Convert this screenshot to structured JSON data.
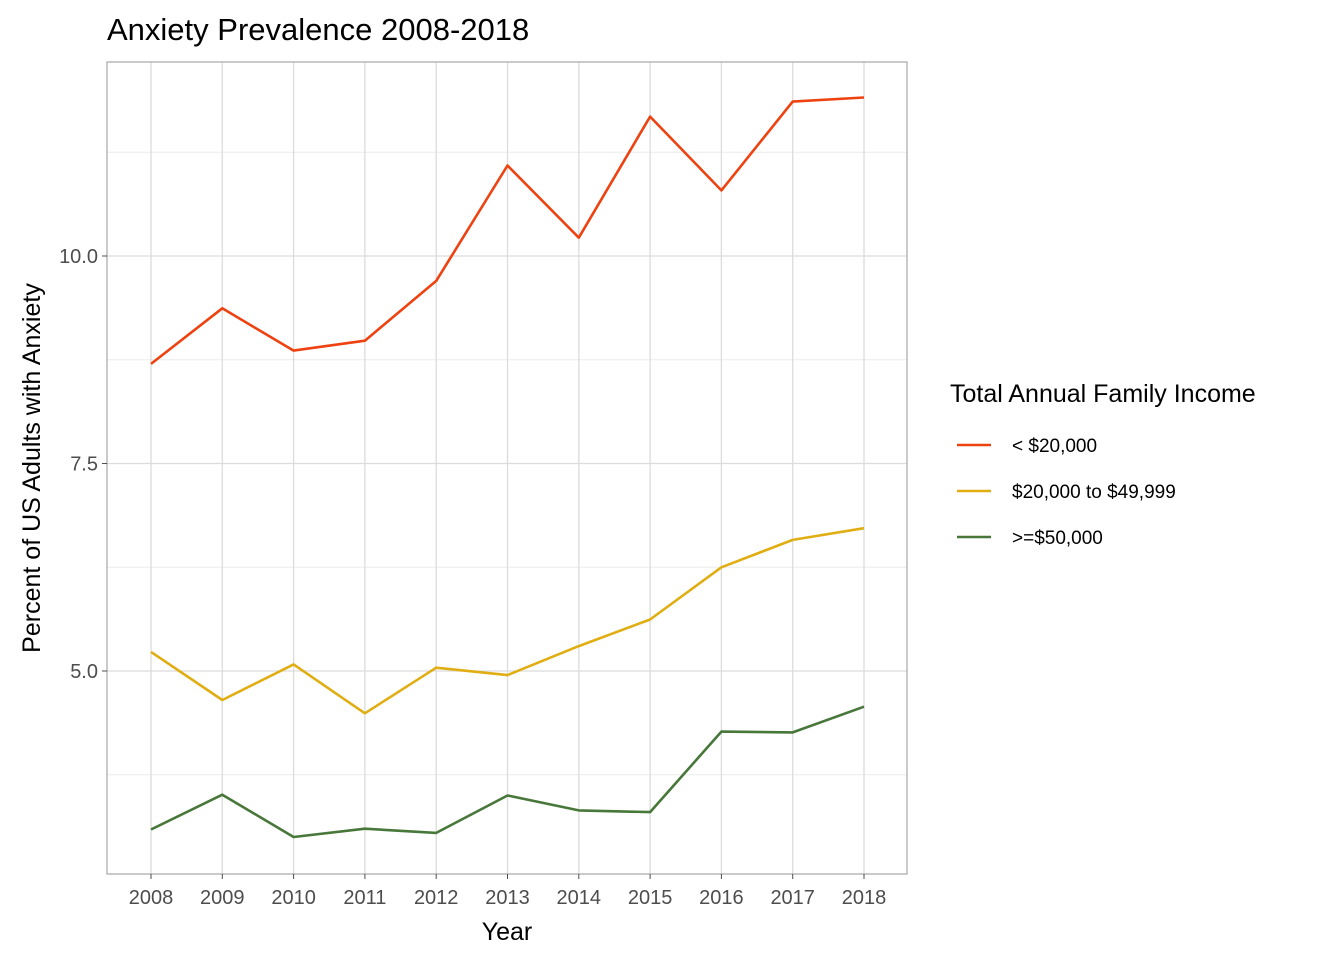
{
  "chart_data": {
    "type": "line",
    "title": "Anxiety Prevalence 2008-2018",
    "xlabel": "Year",
    "ylabel": "Percent of US Adults with Anxiety",
    "x": [
      "2008",
      "2009",
      "2010",
      "2011",
      "2012",
      "2013",
      "2014",
      "2015",
      "2016",
      "2017",
      "2018"
    ],
    "ylim": [
      2.4,
      12.2
    ],
    "yticks": [
      5.0,
      7.5,
      10.0
    ],
    "ytick_labels": [
      "5.0",
      "7.5",
      "10.0"
    ],
    "grid": true,
    "legend": {
      "title": "Total Annual Family Income",
      "position": "right"
    },
    "series": [
      {
        "name": "< $20,000",
        "color": "#ee4211",
        "values": [
          8.7,
          9.37,
          8.86,
          8.98,
          9.7,
          11.09,
          10.22,
          11.68,
          10.79,
          11.86,
          11.91
        ]
      },
      {
        "name": "$20,000 to $49,999",
        "color": "#e0ae13",
        "values": [
          5.23,
          4.65,
          5.08,
          4.49,
          5.04,
          4.95,
          5.3,
          5.62,
          6.25,
          6.58,
          6.72
        ]
      },
      {
        "name": ">=$50,000",
        "color": "#48773a",
        "values": [
          3.09,
          3.51,
          3.0,
          3.1,
          3.05,
          3.5,
          3.32,
          3.3,
          4.27,
          4.26,
          4.57
        ]
      }
    ]
  }
}
